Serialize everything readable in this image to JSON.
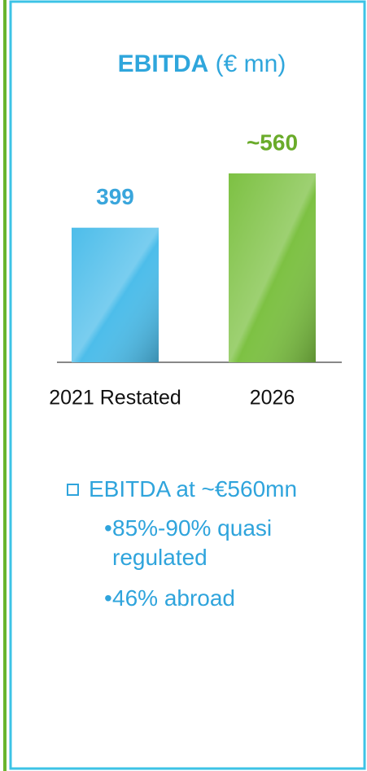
{
  "chart_data": {
    "type": "bar",
    "title": "EBITDA",
    "subtitle": "(€ mn)",
    "categories": [
      "2021 Restated",
      "2026"
    ],
    "values": [
      399,
      560
    ],
    "value_labels": [
      "399",
      "~560"
    ],
    "colors": [
      "#4dbdea",
      "#7dc143"
    ],
    "label_colors": [
      "#3aa6dc",
      "#6aab2a"
    ]
  },
  "notes": {
    "main": "EBITDA at ~€560mn",
    "items": [
      "85%-90% quasi regulated",
      "46% abroad"
    ]
  }
}
